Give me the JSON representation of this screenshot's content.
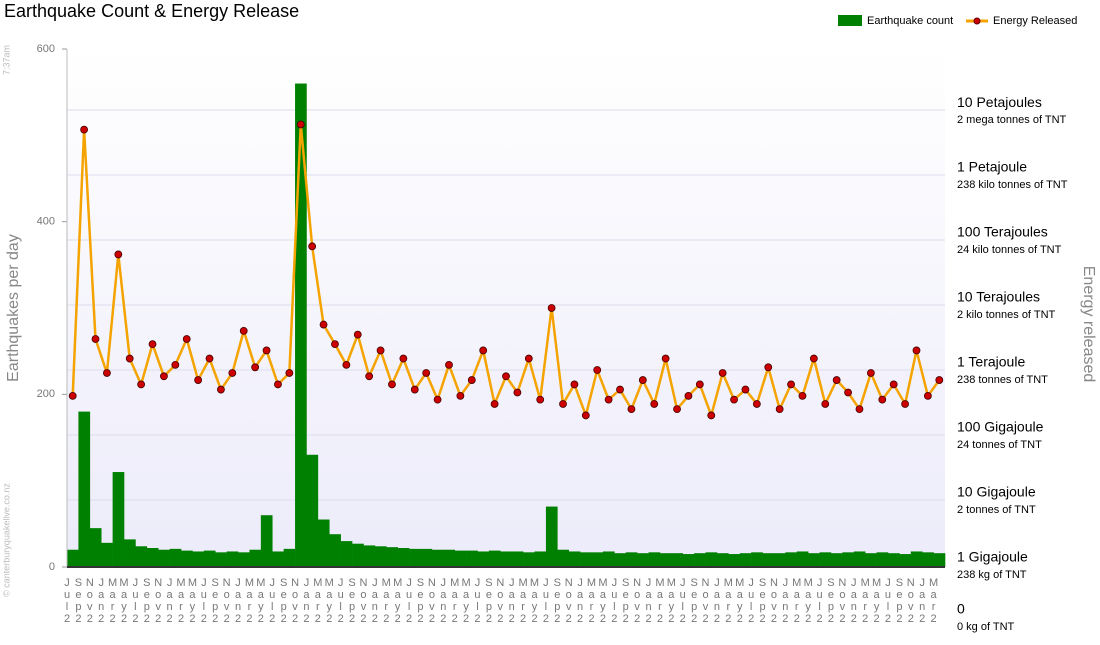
{
  "chart_data": {
    "type": "combo",
    "title": "Earthquake Count & Energy Release",
    "y_label": "Earthquakes per day",
    "y2_label": "Energy released",
    "side_notes": [
      "7:37am",
      "© canterburyquakelive.co.nz"
    ],
    "categories": [
      "Jul2",
      "Sep2",
      "Nov2",
      "Jan2",
      "Mar2",
      "May2",
      "Jul2",
      "Sep2",
      "Nov2",
      "Jan2",
      "Mar2",
      "May2",
      "Jul2",
      "Sep2",
      "Nov2",
      "Jan2",
      "Mar2",
      "May2",
      "Jul2",
      "Sep2",
      "Nov2",
      "Jan2",
      "Mar2",
      "May2",
      "Jul2",
      "Sep2",
      "Nov2",
      "Jan2",
      "Mar2",
      "May2",
      "Jul2",
      "Sep2",
      "Nov2",
      "Jan2",
      "Mar2",
      "May2",
      "Jul2",
      "Sep2",
      "Nov2",
      "Jan2",
      "Mar2",
      "May2",
      "Jul2",
      "Sep2",
      "Nov2",
      "Jan2",
      "Mar2",
      "May2",
      "Jul2",
      "Sep2",
      "Nov2",
      "Jan2",
      "Mar2",
      "May2",
      "Jul2",
      "Sep2",
      "Nov2",
      "Jan2",
      "Mar2",
      "May2",
      "Jul2",
      "Sep2",
      "Nov2",
      "Jan2",
      "Mar2",
      "May2",
      "Jul2",
      "Sep2",
      "Nov2",
      "Jan2",
      "Mar2",
      "May2",
      "Jul2",
      "Sep2",
      "Nov2",
      "Jan2",
      "Mar2"
    ],
    "series": [
      {
        "name": "Earthquake count",
        "type": "bar",
        "color": "#008000",
        "values": [
          20,
          180,
          45,
          28,
          110,
          32,
          24,
          22,
          20,
          21,
          19,
          18,
          19,
          17,
          18,
          17,
          20,
          60,
          18,
          21,
          560,
          130,
          55,
          38,
          30,
          27,
          25,
          24,
          23,
          22,
          21,
          21,
          20,
          20,
          19,
          19,
          18,
          19,
          18,
          18,
          17,
          18,
          70,
          20,
          18,
          17,
          17,
          18,
          16,
          17,
          16,
          17,
          16,
          16,
          15,
          16,
          17,
          16,
          15,
          16,
          17,
          16,
          16,
          17,
          18,
          16,
          17,
          16,
          17,
          18,
          16,
          17,
          16,
          15,
          18,
          17,
          16
        ]
      },
      {
        "name": "Energy Released",
        "type": "line",
        "axis": "y2",
        "color": "#f5a300",
        "marker_color": "#cc0000",
        "values": [
          400,
          5000000,
          3000,
          900,
          60000,
          1500,
          600,
          2500,
          800,
          1200,
          3000,
          700,
          1500,
          500,
          900,
          4000,
          1100,
          2000,
          600,
          900,
          6000000,
          80000,
          5000,
          2500,
          1200,
          3500,
          800,
          2000,
          600,
          1500,
          500,
          900,
          350,
          1200,
          400,
          700,
          2000,
          300,
          800,
          450,
          1500,
          350,
          9000,
          300,
          600,
          200,
          1000,
          350,
          500,
          250,
          700,
          300,
          1500,
          250,
          400,
          600,
          200,
          900,
          350,
          500,
          300,
          1100,
          250,
          600,
          400,
          1500,
          300,
          700,
          450,
          250,
          900,
          350,
          600,
          300,
          2000,
          400,
          700
        ]
      }
    ],
    "ylim": [
      0,
      600
    ],
    "yticks": [
      0,
      200,
      400,
      600
    ],
    "y2lim": [
      0.93,
      87000000
    ],
    "y2log": true,
    "y2ticks": [
      {
        "value": 1,
        "label": "1 Gigajoule",
        "sublabel": "238 kg of TNT"
      },
      {
        "value": 10,
        "label": "10 Gigajoule",
        "sublabel": "2 tonnes of TNT"
      },
      {
        "value": 100,
        "label": "100 Gigajoule",
        "sublabel": "24 tonnes of TNT"
      },
      {
        "value": 1000,
        "label": "1 Terajoule",
        "sublabel": "238 tonnes of TNT"
      },
      {
        "value": 10000,
        "label": "10 Terajoules",
        "sublabel": "2 kilo tonnes of TNT"
      },
      {
        "value": 100000,
        "label": "100 Terajoules",
        "sublabel": "24 kilo tonnes of TNT"
      },
      {
        "value": 1000000,
        "label": "1 Petajoule",
        "sublabel": "238 kilo tonnes of TNT"
      },
      {
        "value": 10000000,
        "label": "10 Petajoules",
        "sublabel": "2 mega tonnes of TNT"
      }
    ],
    "y2_zero": {
      "label": "0",
      "sublabel": "0 kg of TNT"
    },
    "grid": true,
    "legend": "top-right"
  }
}
